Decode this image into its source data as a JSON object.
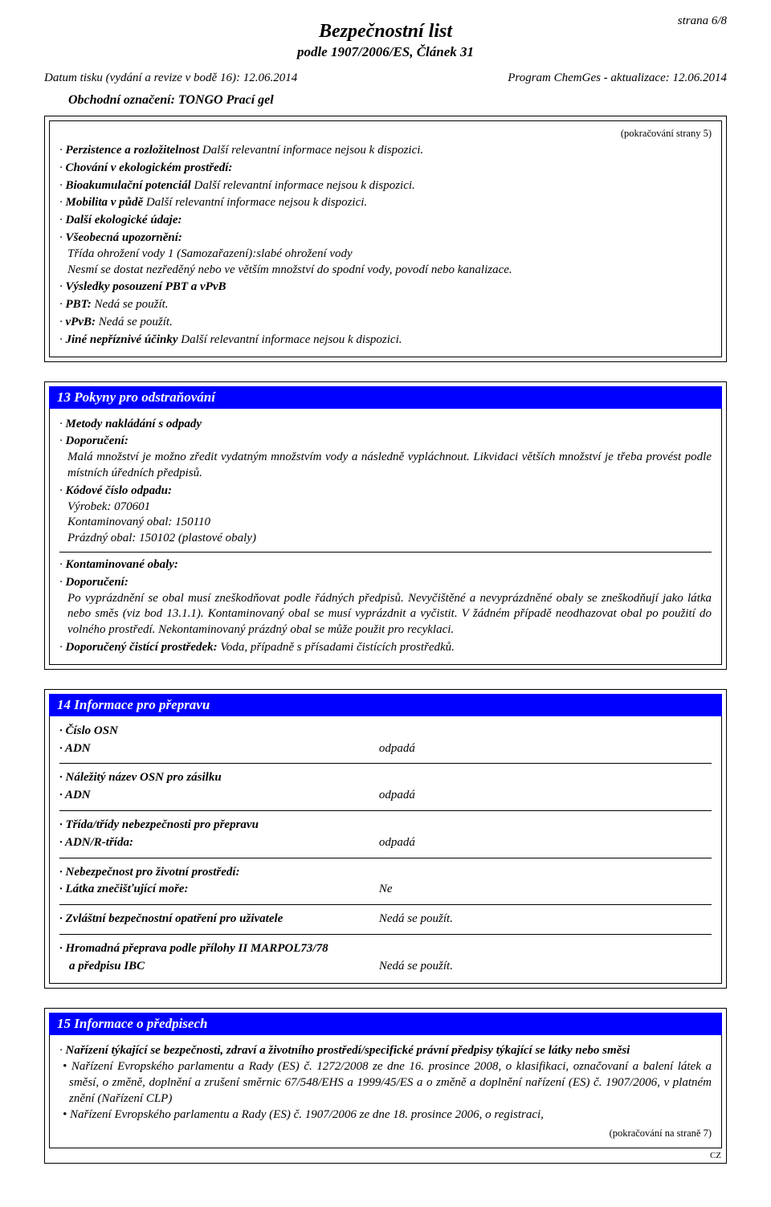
{
  "page_number_label": "strana 6/8",
  "doc_title": "Bezpečnostní list",
  "doc_subtitle": "podle 1907/2006/ES, Článek 31",
  "print_date": "Datum tisku (vydání a revize v bodě 16): 12.06.2014",
  "program_rev": "Program ChemGes - aktualizace: 12.06.2014",
  "product_label": "Obchodní označení: TONGO Prací gel",
  "cont_from": "(pokračování strany 5)",
  "box1": {
    "l1_bold": "Perzistence a rozložitelnost",
    "l1_rest": " Další relevantní informace nejsou k dispozici.",
    "l2_bold": "Chování v ekologickém prostředí:",
    "l3_bold": "Bioakumulační potenciál",
    "l3_rest": " Další relevantní informace nejsou k dispozici.",
    "l4_bold": "Mobilita v půdě",
    "l4_rest": " Další relevantní informace nejsou k dispozici.",
    "l5_bold": "Další ekologické údaje:",
    "l6_bold": "Všeobecná upozornění:",
    "l7": "Třída ohrožení vody 1 (Samozařazení):slabé ohrožení vody",
    "l8": "Nesmí se dostat nezředěný nebo ve větším množství do spodní vody, povodí nebo kanalizace.",
    "l9_bold": "Výsledky posouzení PBT a vPvB",
    "l10_bold": "PBT:",
    "l10_rest": " Nedá se použít.",
    "l11_bold": "vPvB:",
    "l11_rest": " Nedá se použít.",
    "l12_bold": "Jiné nepříznivé účinky",
    "l12_rest": " Další relevantní informace nejsou k dispozici."
  },
  "sec13": {
    "header": "13 Pokyny pro odstraňování",
    "l1_bold": "Metody nakládání s odpady",
    "l2_bold": "Doporučení:",
    "l3": "Malá množství je možno zředit vydatným množstvím vody a následně vypláchnout. Likvidaci větších množství je třeba provést podle místních úředních předpisů.",
    "l4_bold": "Kódové číslo odpadu:",
    "l5": "Výrobek: 070601",
    "l6": "Kontaminovaný obal: 150110",
    "l7": "Prázdný obal: 150102 (plastové obaly)",
    "l8_bold": "Kontaminované obaly:",
    "l9_bold": "Doporučení:",
    "l10": "Po vyprázdnění se obal musí zneškodňovat podle řádných předpisů. Nevyčištěné a nevyprázdněné obaly se zneškodňují jako látka nebo směs (viz bod 13.1.1). Kontaminovaný obal se musí vyprázdnit a vyčistit. V žádném případě neodhazovat obal po použití do volného prostředí. Nekontaminovaný prázdný obal se může použit pro recyklaci.",
    "l11_bold": "Doporučený čistící prostředek:",
    "l11_rest": " Voda, případně s přísadami čistících prostředků."
  },
  "sec14": {
    "header": "14 Informace pro přepravu",
    "rows": [
      {
        "k_bold": "Číslo OSN",
        "v": ""
      },
      {
        "k_bold": "ADN",
        "v": "odpadá"
      },
      {
        "hr": true
      },
      {
        "k_bold": "Náležitý název OSN pro zásilku",
        "v": ""
      },
      {
        "k_bold": "ADN",
        "v": "odpadá"
      },
      {
        "hr": true
      },
      {
        "k_bold": "Třída/třídy nebezpečnosti pro přepravu",
        "v": ""
      },
      {
        "k_bold": "ADN/R-třída:",
        "v": "odpadá"
      },
      {
        "hr": true
      },
      {
        "k_bold": "Nebezpečnost pro životní prostředí:",
        "v": ""
      },
      {
        "k_bold": "Látka znečišťující moře:",
        "v": "Ne"
      },
      {
        "hr": true
      },
      {
        "k_bold": "Zvláštní bezpečnostní opatření pro uživatele",
        "v": "Nedá se použít."
      },
      {
        "hr": true
      },
      {
        "k_bold": "Hromadná přeprava podle přílohy II MARPOL73/78",
        "v": ""
      },
      {
        "k_bold_indent": "a předpisu IBC",
        "v": "Nedá se použít."
      }
    ]
  },
  "sec15": {
    "header": "15 Informace o předpisech",
    "l1_bold": "Nařízení týkající se bezpečnosti, zdraví a životního prostředí/specifické právní předpisy týkající se látky nebo směsi",
    "p1": "Nařízení Evropského parlamentu a Rady (ES) č. 1272/2008 ze dne 16. prosince 2008, o klasifikaci, označovaní a balení látek a směsí, o změně, doplnění a zrušení směrnic 67/548/EHS a 1999/45/ES a o změně a doplnění nařízení (ES) č. 1907/2006, v platném znění (Nařízení CLP)",
    "p2": "Nařízení Evropského parlamentu a Rady (ES) č. 1907/2006 ze dne 18. prosince 2006, o registraci,"
  },
  "cont_to": "(pokračování na straně 7)",
  "cz": "CZ",
  "colors": {
    "header_bg": "#0000ff",
    "header_fg": "#ffffff",
    "border": "#000000",
    "text": "#000000",
    "page_bg": "#ffffff"
  }
}
